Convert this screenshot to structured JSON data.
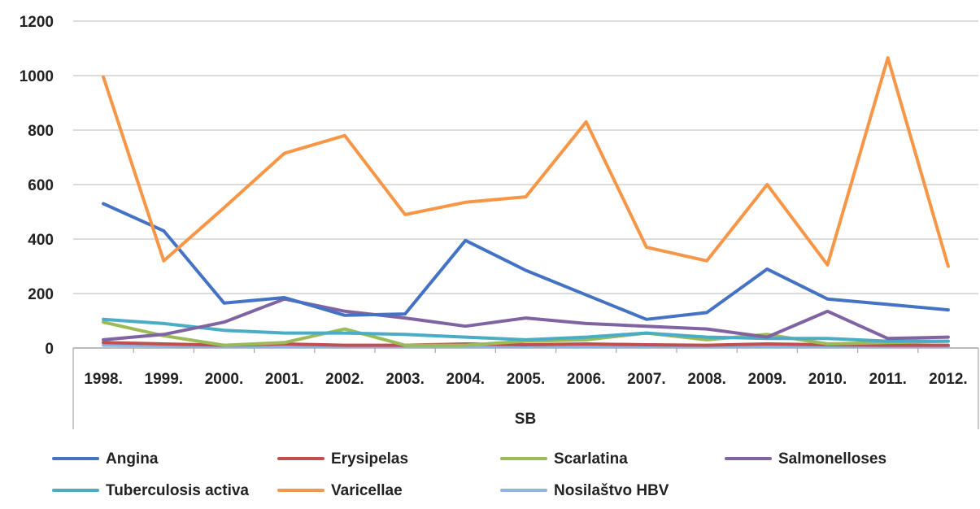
{
  "chart_data": {
    "type": "line",
    "group_label": "SB",
    "categories": [
      "1998.",
      "1999.",
      "2000.",
      "2001.",
      "2002.",
      "2003.",
      "2004.",
      "2005.",
      "2006.",
      "2007.",
      "2008.",
      "2009.",
      "2010.",
      "2011.",
      "2012."
    ],
    "ylim": [
      0,
      1200
    ],
    "yticks": [
      0,
      200,
      400,
      600,
      800,
      1000,
      1200
    ],
    "grid": true,
    "legend_position": "bottom",
    "series": [
      {
        "name": "Angina",
        "color": "#4472c4",
        "values": [
          530,
          430,
          165,
          185,
          120,
          125,
          395,
          285,
          195,
          105,
          130,
          290,
          180,
          160,
          140
        ]
      },
      {
        "name": "Erysipelas",
        "color": "#c0504d",
        "values": [
          20,
          15,
          10,
          15,
          10,
          10,
          15,
          12,
          15,
          12,
          10,
          15,
          12,
          10,
          10
        ]
      },
      {
        "name": "Scarlatina",
        "color": "#9bbb59",
        "values": [
          95,
          45,
          10,
          20,
          70,
          10,
          10,
          25,
          30,
          55,
          30,
          50,
          15,
          20,
          25
        ]
      },
      {
        "name": "Salmonelloses",
        "color": "#8064a2",
        "values": [
          30,
          50,
          95,
          180,
          135,
          110,
          80,
          110,
          90,
          80,
          70,
          40,
          135,
          35,
          40
        ]
      },
      {
        "name": "Tuberculosis activa",
        "color": "#4bacc6",
        "values": [
          105,
          90,
          65,
          55,
          55,
          50,
          40,
          30,
          40,
          55,
          40,
          35,
          35,
          25,
          25
        ]
      },
      {
        "name": "Varicellae",
        "color": "#f79646",
        "values": [
          995,
          320,
          515,
          715,
          780,
          490,
          535,
          555,
          830,
          370,
          320,
          600,
          305,
          1065,
          300
        ]
      },
      {
        "name": "Nosilaštvo HBV",
        "color": "#8eb4e3",
        "values": [
          10,
          8,
          5,
          5,
          5,
          5,
          5,
          5,
          5,
          5,
          5,
          5,
          5,
          5,
          5
        ]
      }
    ]
  }
}
